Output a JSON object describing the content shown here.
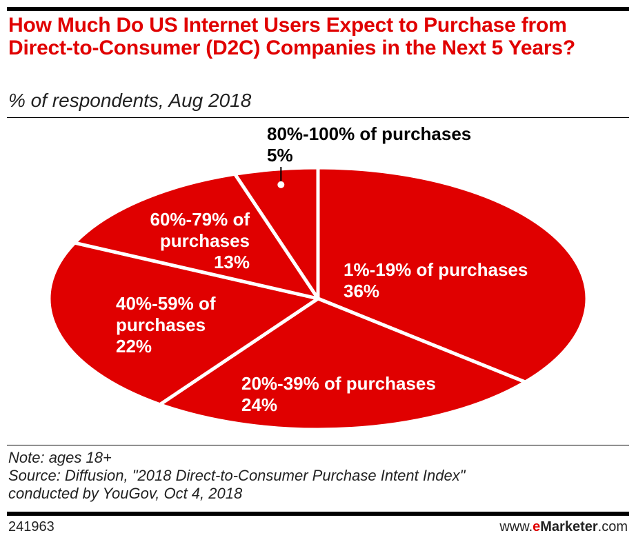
{
  "title": "How Much Do US Internet Users Expect to Purchase from Direct-to-Consumer (D2C) Companies in the Next 5 Years?",
  "subtitle": "% of respondents, Aug 2018",
  "note": {
    "line1": "Note: ages 18+",
    "line2": "Source: Diffusion, \"2018 Direct-to-Consumer Purchase Intent Index\"",
    "line3": "conducted by YouGov, Oct 4, 2018"
  },
  "footer": {
    "chart_id": "241963",
    "brand_prefix": "www.",
    "brand_e": "e",
    "brand_name": "Marketer",
    "brand_suffix": ".com"
  },
  "colors": {
    "accent": "#e00000",
    "slice_border": "#ffffff",
    "label_inside": "#ffffff",
    "label_outside": "#000000"
  },
  "chart_data": {
    "type": "pie",
    "title": "How Much Do US Internet Users Expect to Purchase from Direct-to-Consumer (D2C) Companies in the Next 5 Years?",
    "subtitle": "% of respondents, Aug 2018",
    "unit": "%",
    "slices": [
      {
        "label": "1%-19% of purchases",
        "label_lines": [
          "1%-19% of purchases"
        ],
        "value": 36,
        "value_label": "36%"
      },
      {
        "label": "20%-39% of purchases",
        "label_lines": [
          "20%-39% of purchases"
        ],
        "value": 24,
        "value_label": "24%"
      },
      {
        "label": "40%-59% of purchases",
        "label_lines": [
          "40%-59% of",
          "purchases"
        ],
        "value": 22,
        "value_label": "22%"
      },
      {
        "label": "60%-79% of purchases",
        "label_lines": [
          "60%-79% of",
          "purchases"
        ],
        "value": 13,
        "value_label": "13%"
      },
      {
        "label": "80%-100% of purchases",
        "label_lines": [
          "80%-100% of purchases"
        ],
        "value": 5,
        "value_label": "5%"
      }
    ]
  }
}
